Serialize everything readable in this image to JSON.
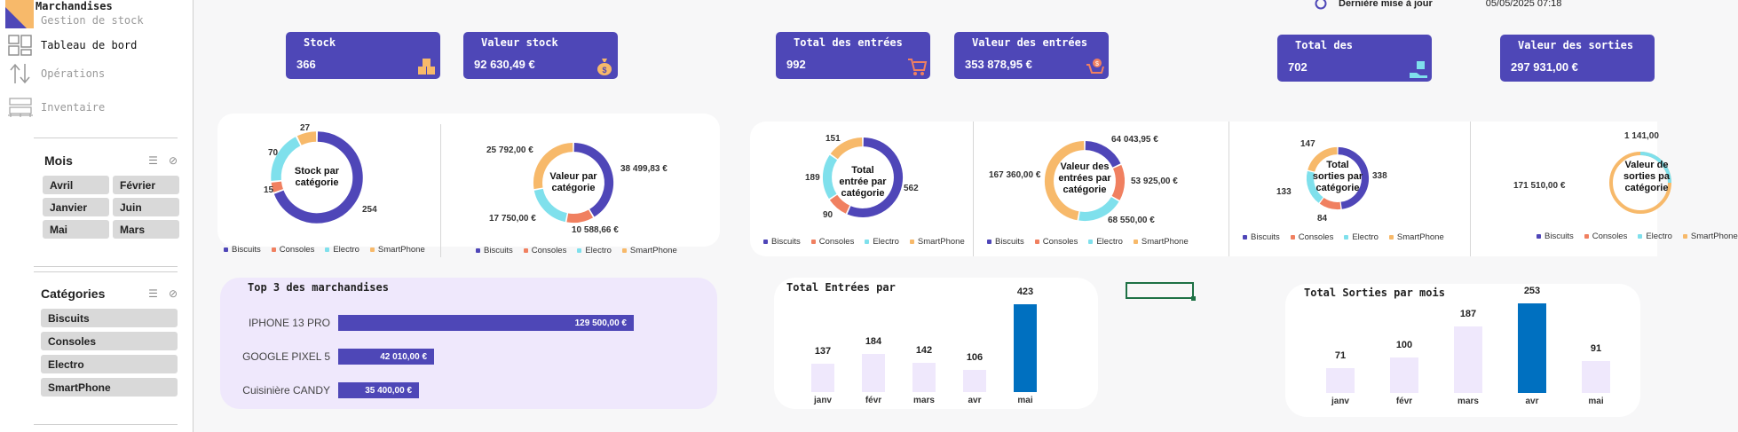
{
  "sidebar": {
    "app_title": "Marchandises",
    "app_subtitle": "Gestion de stock",
    "nav": [
      {
        "label": "Tableau de bord",
        "icon": "dashboard-icon"
      },
      {
        "label": "Opérations",
        "icon": "transfer-arrows-icon"
      },
      {
        "label": "Inventaire",
        "icon": "pallet-icon"
      }
    ],
    "slicer_mois": {
      "title": "Mois",
      "items": [
        "Avril",
        "Février",
        "Janvier",
        "Juin",
        "Mai",
        "Mars"
      ]
    },
    "slicer_categories": {
      "title": "Catégories",
      "items": [
        "Biscuits",
        "Consoles",
        "Electro",
        "SmartPhone"
      ]
    }
  },
  "header": {
    "last_update_label": "Dernière mise à jour",
    "last_update_value": "05/05/2025 07:18"
  },
  "kpis": [
    {
      "title": "Stock",
      "value": "366",
      "icon": "boxes-icon"
    },
    {
      "title": "Valeur stock",
      "value": "92 630,49 €",
      "icon": "money-bag-icon"
    },
    {
      "title": "Total des entrées",
      "value": "992",
      "icon": "cart-icon"
    },
    {
      "title": "Valeur des entrées",
      "value": "353 878,95 €",
      "icon": "cart-money-icon"
    },
    {
      "title": "Total des",
      "value": "702",
      "icon": "hand-box-icon"
    },
    {
      "title": "Valeur des sorties",
      "value": "297 931,00 €",
      "icon": "money-icon"
    }
  ],
  "colors": {
    "accent": "#4e47b7",
    "biscuits": "#4f46b8",
    "consoles": "#f08060",
    "electro": "#7fe0ec",
    "smartphone": "#f7b96a",
    "highlight_bar": "#0070c0",
    "light_bar": "#efe8fc"
  },
  "legend": [
    "Biscuits",
    "Consoles",
    "Electro",
    "SmartPhone"
  ],
  "donuts": [
    {
      "center": [
        "Stock par",
        "catégorie"
      ],
      "labels": [
        "254",
        "15",
        "70",
        "27"
      ]
    },
    {
      "center": [
        "Valeur par",
        "catégorie"
      ],
      "labels": [
        "38 499,83 €",
        "10 588,66 €",
        "17 750,00 €",
        "25 792,00 €"
      ]
    },
    {
      "center": [
        "Total",
        "entrée par",
        "catégorie"
      ],
      "labels": [
        "562",
        "90",
        "189",
        "151"
      ]
    },
    {
      "center": [
        "Valeur des",
        "entrées par",
        "catégorie"
      ],
      "labels": [
        "64 043,95 €",
        "53 925,00 €",
        "68 550,00 €",
        "167 360,00 €"
      ]
    },
    {
      "center": [
        "Total",
        "sorties par",
        "catégorie"
      ],
      "labels": [
        "338",
        "84",
        "133",
        "147"
      ]
    },
    {
      "center": [
        "Valeur de",
        "sorties pa",
        "catégorie"
      ],
      "labels": [
        "1 141,00",
        "171 510,00 €"
      ]
    }
  ],
  "chart_data": [
    {
      "type": "pie",
      "title": "Stock par catégorie",
      "categories": [
        "Biscuits",
        "Consoles",
        "Electro",
        "SmartPhone"
      ],
      "values": [
        254,
        15,
        70,
        27
      ]
    },
    {
      "type": "pie",
      "title": "Valeur par catégorie",
      "categories": [
        "Biscuits",
        "Consoles",
        "Electro",
        "SmartPhone"
      ],
      "values": [
        38499.83,
        10588.66,
        17750.0,
        25792.0
      ]
    },
    {
      "type": "pie",
      "title": "Total entrée par catégorie",
      "categories": [
        "Biscuits",
        "Consoles",
        "Electro",
        "SmartPhone"
      ],
      "values": [
        562,
        90,
        189,
        151
      ]
    },
    {
      "type": "pie",
      "title": "Valeur des entrées par catégorie",
      "categories": [
        "Biscuits",
        "Consoles",
        "Electro",
        "SmartPhone"
      ],
      "values": [
        64043.95,
        53925.0,
        68550.0,
        167360.0
      ]
    },
    {
      "type": "pie",
      "title": "Total sorties par catégorie",
      "categories": [
        "Biscuits",
        "Consoles",
        "Electro",
        "SmartPhone"
      ],
      "values": [
        338,
        84,
        133,
        147
      ]
    },
    {
      "type": "bar",
      "orientation": "horizontal",
      "title": "Top 3 des marchandises",
      "categories": [
        "IPHONE 13 PRO",
        "GOOGLE PIXEL 5",
        "Cuisinière CANDY"
      ],
      "values": [
        129500.0,
        42010.0,
        35400.0
      ],
      "value_labels": [
        "129 500,00 €",
        "42 010,00 €",
        "35 400,00 €"
      ]
    },
    {
      "type": "bar",
      "title": "Total Entrées par",
      "categories": [
        "janv",
        "févr",
        "mars",
        "avr",
        "mai"
      ],
      "values": [
        137,
        184,
        142,
        106,
        423
      ],
      "highlight": "mai"
    },
    {
      "type": "bar",
      "title": "Total Sorties par mois",
      "categories": [
        "janv",
        "févr",
        "mars",
        "avr",
        "mai"
      ],
      "values": [
        71,
        100,
        187,
        253,
        91
      ],
      "highlight": "avr"
    }
  ]
}
